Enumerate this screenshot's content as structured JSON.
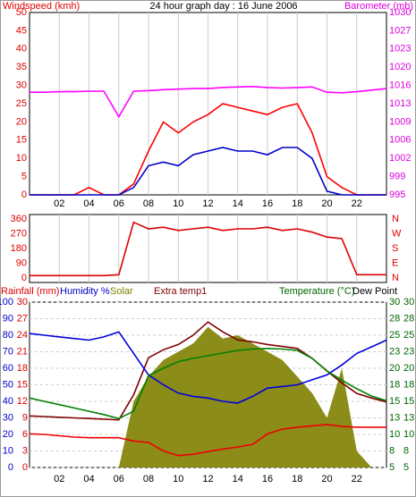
{
  "chart_data": [
    {
      "type": "line",
      "title": "24 hour graph day : 16 June 2006",
      "y_label": "Windspeed (kmh)",
      "y2_label": "Barometer (mb)",
      "x": [
        0,
        1,
        2,
        3,
        4,
        5,
        6,
        7,
        8,
        9,
        10,
        11,
        12,
        13,
        14,
        15,
        16,
        17,
        18,
        19,
        20,
        21,
        22,
        23,
        24
      ],
      "xlim": [
        0,
        24
      ],
      "xticks": [
        {
          "value": 2,
          "label": "02"
        },
        {
          "value": 4,
          "label": "04"
        },
        {
          "value": 6,
          "label": "06"
        },
        {
          "value": 8,
          "label": "08"
        },
        {
          "value": 10,
          "label": "10"
        },
        {
          "value": 12,
          "label": "12"
        },
        {
          "value": 14,
          "label": "14"
        },
        {
          "value": 16,
          "label": "16"
        },
        {
          "value": 18,
          "label": "18"
        },
        {
          "value": 20,
          "label": "20"
        },
        {
          "value": 22,
          "label": "22"
        }
      ],
      "ylim": [
        0,
        50
      ],
      "yticks": [
        0,
        5,
        10,
        15,
        20,
        25,
        30,
        35,
        40,
        45,
        50
      ],
      "y2lim": [
        995,
        1030
      ],
      "y2ticks": [
        995,
        {
          "value": 998.5,
          "label": "999"
        },
        1002,
        {
          "value": 1005.5,
          "label": "1006"
        },
        1009,
        {
          "value": 1012.5,
          "label": "1013"
        },
        1016,
        {
          "value": 1019.5,
          "label": "1020"
        },
        1023,
        {
          "value": 1026.5,
          "label": "1027"
        },
        1030
      ],
      "grid": true,
      "series": [
        {
          "color": "#ff00ff",
          "axis": "y2",
          "values": [
            1014.7,
            1014.7,
            1014.8,
            1014.8,
            1014.9,
            1014.9,
            1010.0,
            1014.9,
            1015.0,
            1015.2,
            1015.3,
            1015.4,
            1015.4,
            1015.6,
            1015.7,
            1015.8,
            1015.6,
            1015.5,
            1015.6,
            1015.7,
            1014.7,
            1014.6,
            1014.8,
            1015.1,
            1015.4
          ]
        },
        {
          "color": "#ff0000",
          "values": [
            0,
            0,
            0,
            0,
            2,
            0,
            0,
            3,
            12,
            20,
            17,
            20,
            22,
            25,
            24,
            23,
            22,
            24,
            25,
            17,
            5,
            2,
            0,
            0,
            0
          ]
        },
        {
          "color": "#0000cc",
          "values": [
            0,
            0,
            0,
            0,
            0,
            0,
            0,
            2,
            8,
            9,
            8,
            11,
            12,
            13,
            12,
            12,
            11,
            13,
            13,
            10,
            1,
            0,
            0,
            0,
            0
          ]
        }
      ]
    },
    {
      "type": "line",
      "x": [
        0,
        1,
        2,
        3,
        4,
        5,
        6,
        7,
        8,
        9,
        10,
        11,
        12,
        13,
        14,
        15,
        16,
        17,
        18,
        19,
        20,
        21,
        22,
        23,
        24
      ],
      "xlim": [
        0,
        24
      ],
      "xticks": [
        {
          "value": 2,
          "label": "02"
        },
        {
          "value": 4,
          "label": "04"
        },
        {
          "value": 6,
          "label": "06"
        },
        {
          "value": 8,
          "label": "08"
        },
        {
          "value": 10,
          "label": "10"
        },
        {
          "value": 12,
          "label": "12"
        },
        {
          "value": 14,
          "label": "14"
        },
        {
          "value": 16,
          "label": "16"
        },
        {
          "value": 18,
          "label": "18"
        },
        {
          "value": 20,
          "label": "20"
        },
        {
          "value": 22,
          "label": "22"
        }
      ],
      "ylim": [
        0,
        360
      ],
      "yticks": [
        0,
        90,
        180,
        270,
        360
      ],
      "y2lim": [
        0,
        360
      ],
      "y2ticks": [
        {
          "value": 0,
          "label": "N"
        },
        {
          "value": 90,
          "label": "E"
        },
        {
          "value": 180,
          "label": "S"
        },
        {
          "value": 270,
          "label": "W"
        },
        {
          "value": 360,
          "label": "N"
        }
      ],
      "grid": true,
      "series": [
        {
          "color": "#dd0000",
          "values": [
            15,
            15,
            15,
            15,
            15,
            15,
            20,
            340,
            300,
            310,
            290,
            300,
            310,
            290,
            300,
            300,
            310,
            290,
            300,
            280,
            250,
            240,
            20,
            20,
            20
          ]
        }
      ]
    },
    {
      "type": "line",
      "y2_label": "Temperature (°C)",
      "y3_label": "Rainfall (mm)",
      "x": [
        0,
        1,
        2,
        3,
        4,
        5,
        6,
        7,
        8,
        9,
        10,
        11,
        12,
        13,
        14,
        15,
        16,
        17,
        18,
        19,
        20,
        21,
        22,
        23,
        24
      ],
      "xlim": [
        0,
        24
      ],
      "xticks": [
        {
          "value": 2,
          "label": "02"
        },
        {
          "value": 4,
          "label": "04"
        },
        {
          "value": 6,
          "label": "06"
        },
        {
          "value": 8,
          "label": "08"
        },
        {
          "value": 10,
          "label": "10"
        },
        {
          "value": 12,
          "label": "12"
        },
        {
          "value": 14,
          "label": "14"
        },
        {
          "value": 16,
          "label": "16"
        },
        {
          "value": 18,
          "label": "18"
        },
        {
          "value": 20,
          "label": "20"
        },
        {
          "value": 22,
          "label": "22"
        }
      ],
      "ylim": [
        0,
        100
      ],
      "yticks": [
        0,
        10,
        20,
        30,
        40,
        50,
        60,
        70,
        80,
        90,
        100
      ],
      "y3lim": [
        0,
        30
      ],
      "y3ticks": [
        0,
        3,
        6,
        9,
        12,
        15,
        18,
        21,
        24,
        27,
        30
      ],
      "y2lim": [
        5,
        30
      ],
      "y2ticks": [
        5,
        {
          "value": 7.5,
          "label": "8"
        },
        10,
        {
          "value": 12.5,
          "label": "13"
        },
        15,
        {
          "value": 17.5,
          "label": "18"
        },
        20,
        {
          "value": 22.5,
          "label": "23"
        },
        25,
        {
          "value": 27.5,
          "label": "28"
        },
        30
      ],
      "grid": true,
      "series": [
        {
          "name": "Solar",
          "color": "#808000",
          "area": true,
          "values": [
            0,
            0,
            0,
            0,
            0,
            0,
            0,
            40,
            55,
            65,
            70,
            75,
            85,
            78,
            80,
            75,
            70,
            65,
            55,
            45,
            30,
            60,
            10,
            0,
            0
          ]
        },
        {
          "name": "Extra temp1",
          "color": "#800000",
          "axis": "y2",
          "values": [
            12.8,
            12.7,
            12.6,
            12.5,
            12.4,
            12.3,
            12.2,
            16.0,
            21.6,
            22.8,
            23.6,
            25.0,
            27.0,
            25.5,
            24.3,
            24.0,
            23.6,
            23.3,
            23.0,
            21.5,
            19.6,
            17.8,
            16.2,
            15.5,
            14.9
          ]
        },
        {
          "name": "Humidity %",
          "color": "#0000dd",
          "values": [
            81,
            80,
            79,
            78,
            77,
            79,
            82,
            69,
            56,
            50,
            45,
            43,
            42,
            40,
            39,
            43,
            48,
            49,
            50,
            53,
            56,
            62,
            69,
            73,
            77
          ]
        },
        {
          "color": "#008000",
          "axis": "y2",
          "values": [
            15.5,
            15.0,
            14.5,
            14.0,
            13.5,
            13.0,
            12.4,
            13.5,
            18.9,
            20.0,
            21.0,
            21.5,
            21.9,
            22.3,
            22.7,
            22.9,
            23.0,
            22.9,
            22.7,
            21.5,
            19.6,
            18.2,
            16.9,
            15.8,
            15.1
          ]
        },
        {
          "name": "Dew Point",
          "color": "#ee0000",
          "axis": "y2",
          "values": [
            10.1,
            10.0,
            9.8,
            9.6,
            9.5,
            9.5,
            9.5,
            9.0,
            8.8,
            7.5,
            6.8,
            7.0,
            7.4,
            7.8,
            8.1,
            8.5,
            10.1,
            10.8,
            11.1,
            11.3,
            11.5,
            11.2,
            11.1,
            11.1,
            11.1
          ]
        }
      ]
    }
  ]
}
